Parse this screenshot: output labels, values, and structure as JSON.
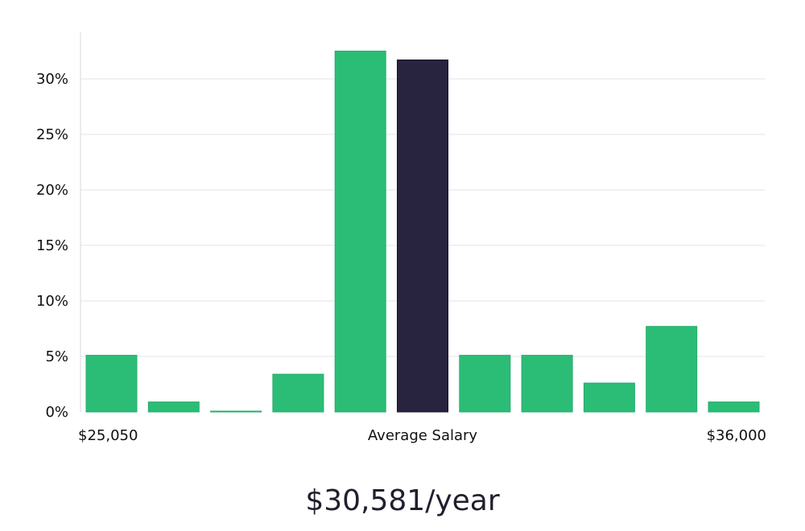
{
  "colors": {
    "bar": "#2bbd76",
    "highlight": "#28243f",
    "grid": "#e3e3e3",
    "axis": "#d9d9d9",
    "text": "#111111"
  },
  "chart_data": {
    "type": "bar",
    "categories": [
      "1",
      "2",
      "3",
      "4",
      "5",
      "6",
      "7",
      "8",
      "9",
      "10",
      "11"
    ],
    "values": [
      5.1,
      0.9,
      0.05,
      3.4,
      32.5,
      31.7,
      5.1,
      5.1,
      2.6,
      7.7,
      0.9
    ],
    "highlight_index": 5,
    "ylim": [
      0,
      34
    ],
    "yticks": [
      0,
      5,
      10,
      15,
      20,
      25,
      30
    ],
    "ytick_format": "percent",
    "grid": true,
    "x_labels": {
      "left": "$25,050",
      "center": "Average Salary",
      "right": "$36,000"
    }
  },
  "headline": {
    "salary": "$30,581/year"
  }
}
